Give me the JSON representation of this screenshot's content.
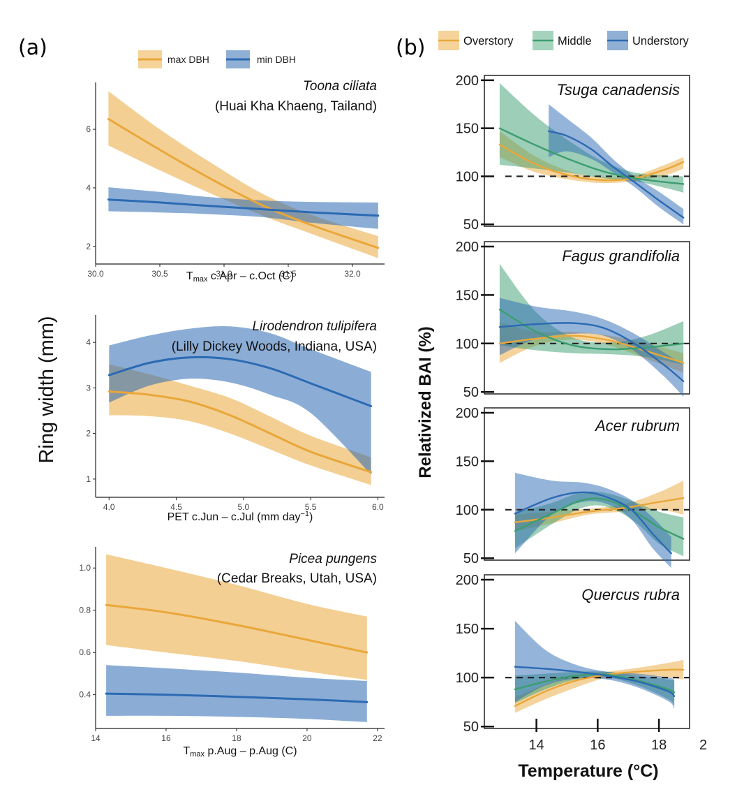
{
  "figure": {
    "panel_a_label": "(a)",
    "panel_b_label": "(b)"
  },
  "colors": {
    "max DBH": "#E9A73A",
    "min DBH": "#2C6AB3",
    "Overstory": "#E9A73A",
    "Middle": "#3C9E70",
    "Understory": "#2C6AB3",
    "reference_line": "#222222"
  },
  "chart_data": [
    {
      "type": "line",
      "panel": "(a)",
      "annotation_species": "Toona ciliata",
      "annotation_site": "(Huai Kha Khaeng, Tailand)",
      "xlabel_main": "T",
      "xlabel_sub": "max",
      "xlabel_rest": " c.Apr – c.Oct (C)",
      "ylabel": "Ring width (mm)",
      "legend": [
        "max DBH",
        "min DBH"
      ],
      "legend_position": "top-center",
      "grid": false,
      "xlim": [
        30.0,
        32.25
      ],
      "ylim": [
        1.4,
        7.6
      ],
      "xticks": [
        30.0,
        30.5,
        31.0,
        31.5,
        32.0
      ],
      "xticklabels": [
        "30.0",
        "30.5",
        "31.0",
        "31.5",
        "32.0"
      ],
      "yticks": [
        2,
        4,
        6
      ],
      "yticklabels": [
        "2",
        "4",
        "6"
      ],
      "series": [
        {
          "name": "max DBH",
          "x": [
            30.1,
            30.5,
            30.9,
            31.3,
            31.7,
            32.2
          ],
          "y": [
            6.35,
            5.3,
            4.3,
            3.4,
            2.7,
            1.95
          ],
          "lower": [
            5.45,
            4.6,
            3.8,
            3.05,
            2.4,
            1.6
          ],
          "upper": [
            7.3,
            6.0,
            4.85,
            3.8,
            3.05,
            2.35
          ]
        },
        {
          "name": "min DBH",
          "x": [
            30.1,
            30.5,
            30.9,
            31.3,
            31.7,
            32.2
          ],
          "y": [
            3.6,
            3.5,
            3.38,
            3.27,
            3.16,
            3.05
          ],
          "lower": [
            3.2,
            3.16,
            3.1,
            3.0,
            2.8,
            2.6
          ],
          "upper": [
            4.02,
            3.86,
            3.68,
            3.57,
            3.52,
            3.5
          ]
        }
      ]
    },
    {
      "type": "line",
      "panel": "(a)",
      "annotation_species": "Lirodendron tulipifera",
      "annotation_site": "(Lilly Dickey Woods, Indiana, USA)",
      "xlabel_main": "PET c.Jun – c.Jul (mm day",
      "xlabel_sup": "−1",
      "xlabel_rest": ")",
      "grid": false,
      "xlim": [
        3.9,
        6.05
      ],
      "ylim": [
        0.6,
        4.6
      ],
      "xticks": [
        4.0,
        4.5,
        5.0,
        5.5,
        6.0
      ],
      "xticklabels": [
        "4.0",
        "4.5",
        "5.0",
        "5.5",
        "6.0"
      ],
      "yticks": [
        1,
        2,
        3,
        4
      ],
      "yticklabels": [
        "1",
        "2",
        "3",
        "4"
      ],
      "series": [
        {
          "name": "max DBH",
          "x": [
            4.0,
            4.3,
            4.6,
            4.9,
            5.2,
            5.5,
            5.95
          ],
          "y": [
            2.92,
            2.85,
            2.7,
            2.4,
            2.0,
            1.6,
            1.15
          ],
          "lower": [
            2.4,
            2.38,
            2.27,
            2.0,
            1.65,
            1.3,
            0.87
          ],
          "upper": [
            3.52,
            3.3,
            3.05,
            2.78,
            2.37,
            1.95,
            1.48
          ]
        },
        {
          "name": "min DBH",
          "x": [
            4.0,
            4.3,
            4.6,
            4.9,
            5.2,
            5.5,
            5.95
          ],
          "y": [
            3.28,
            3.55,
            3.67,
            3.63,
            3.43,
            3.1,
            2.6
          ],
          "lower": [
            2.68,
            3.05,
            3.2,
            3.12,
            2.85,
            2.45,
            1.1
          ],
          "upper": [
            3.93,
            4.15,
            4.3,
            4.35,
            4.2,
            3.85,
            3.35
          ]
        }
      ]
    },
    {
      "type": "line",
      "panel": "(a)",
      "annotation_species": "Picea pungens",
      "annotation_site": "(Cedar Breaks, Utah, USA)",
      "xlabel_main": "T",
      "xlabel_sub": "max",
      "xlabel_rest": " p.Aug – p.Aug (C)",
      "grid": false,
      "xlim": [
        14.0,
        22.2
      ],
      "ylim": [
        0.24,
        1.1
      ],
      "xticks": [
        14,
        16,
        18,
        20,
        22
      ],
      "xticklabels": [
        "14",
        "16",
        "18",
        "20",
        "22"
      ],
      "yticks": [
        0.4,
        0.6,
        0.8,
        1.0
      ],
      "yticklabels": [
        "0.4",
        "0.6",
        "0.8",
        "1.0"
      ],
      "series": [
        {
          "name": "max DBH",
          "x": [
            14.3,
            16.0,
            18.0,
            20.0,
            21.7
          ],
          "y": [
            0.825,
            0.79,
            0.73,
            0.66,
            0.6
          ],
          "lower": [
            0.635,
            0.6,
            0.56,
            0.51,
            0.47
          ],
          "upper": [
            1.065,
            1.0,
            0.92,
            0.83,
            0.77
          ]
        },
        {
          "name": "min DBH",
          "x": [
            14.3,
            16.0,
            18.0,
            20.0,
            21.7
          ],
          "y": [
            0.405,
            0.4,
            0.39,
            0.378,
            0.365
          ],
          "lower": [
            0.3,
            0.3,
            0.295,
            0.285,
            0.27
          ],
          "upper": [
            0.54,
            0.525,
            0.505,
            0.48,
            0.465
          ]
        }
      ]
    },
    {
      "type": "line",
      "panel": "(b)",
      "annotation_species": "Tsuga canadensis",
      "ylabel": "Relativized BAI (%)",
      "xlabel": "Temperature (°C)",
      "legend": [
        "Overstory",
        "Middle",
        "Understory"
      ],
      "legend_position": "top",
      "reference_line_y": 100,
      "grid": false,
      "xlim": [
        12.3,
        19.0
      ],
      "ylim": [
        48,
        205
      ],
      "yticks": [
        50,
        100,
        150,
        200
      ],
      "yticklabels": [
        "50",
        "100",
        "150",
        "200"
      ],
      "series": [
        {
          "name": "Overstory",
          "x": [
            12.8,
            14.0,
            15.2,
            16.2,
            17.2,
            18.2,
            18.8
          ],
          "y": [
            133,
            112,
            100,
            96,
            98,
            107,
            115
          ],
          "lower": [
            120,
            104,
            96,
            93,
            95,
            101,
            108
          ],
          "upper": [
            147,
            120,
            104,
            99,
            101,
            112,
            120
          ]
        },
        {
          "name": "Middle",
          "x": [
            12.8,
            14.0,
            15.2,
            16.2,
            17.2,
            18.2,
            18.8
          ],
          "y": [
            150,
            132,
            116,
            105,
            98,
            94,
            92
          ],
          "lower": [
            112,
            108,
            103,
            98,
            95,
            88,
            83
          ],
          "upper": [
            197,
            162,
            134,
            115,
            104,
            101,
            100
          ]
        },
        {
          "name": "Understory",
          "x": [
            14.4,
            15.0,
            15.8,
            16.5,
            17.2,
            18.0,
            18.8
          ],
          "y": [
            147,
            142,
            128,
            110,
            94,
            75,
            57
          ],
          "lower": [
            120,
            126,
            118,
            104,
            89,
            68,
            50
          ],
          "upper": [
            175,
            160,
            140,
            118,
            100,
            84,
            66
          ]
        }
      ]
    },
    {
      "type": "line",
      "panel": "(b)",
      "annotation_species": "Fagus grandifolia",
      "reference_line_y": 100,
      "grid": false,
      "xlim": [
        12.3,
        19.0
      ],
      "ylim": [
        48,
        205
      ],
      "yticks": [
        50,
        100,
        150,
        200
      ],
      "yticklabels": [
        "50",
        "100",
        "150",
        "200"
      ],
      "series": [
        {
          "name": "Overstory",
          "x": [
            12.8,
            14.0,
            15.2,
            16.4,
            17.6,
            18.8
          ],
          "y": [
            100,
            105,
            108,
            103,
            92,
            80
          ],
          "lower": [
            80,
            98,
            104,
            98,
            84,
            70
          ],
          "upper": [
            122,
            112,
            112,
            108,
            100,
            90
          ]
        },
        {
          "name": "Middle",
          "x": [
            12.8,
            14.0,
            15.2,
            16.4,
            17.6,
            18.8
          ],
          "y": [
            135,
            112,
            98,
            94,
            96,
            100
          ],
          "lower": [
            98,
            93,
            90,
            89,
            86,
            78
          ],
          "upper": [
            182,
            132,
            106,
            101,
            108,
            123
          ]
        },
        {
          "name": "Understory",
          "x": [
            12.8,
            14.0,
            15.2,
            16.2,
            17.2,
            18.2,
            18.8
          ],
          "y": [
            117,
            120,
            121,
            116,
            100,
            77,
            61
          ],
          "lower": [
            88,
            105,
            110,
            108,
            92,
            65,
            45
          ],
          "upper": [
            147,
            138,
            133,
            125,
            110,
            90,
            78
          ]
        }
      ]
    },
    {
      "type": "line",
      "panel": "(b)",
      "annotation_species": "Acer rubrum",
      "reference_line_y": 100,
      "grid": false,
      "xlim": [
        12.3,
        19.0
      ],
      "ylim": [
        48,
        205
      ],
      "yticks": [
        50,
        100,
        150,
        200
      ],
      "yticklabels": [
        "50",
        "100",
        "150",
        "200"
      ],
      "series": [
        {
          "name": "Overstory",
          "x": [
            13.3,
            14.5,
            15.7,
            16.9,
            18.0,
            18.8
          ],
          "y": [
            87,
            92,
            98,
            102,
            108,
            112
          ],
          "lower": [
            78,
            86,
            95,
            98,
            100,
            95
          ],
          "upper": [
            95,
            98,
            101,
            106,
            118,
            130
          ]
        },
        {
          "name": "Middle",
          "x": [
            13.3,
            14.5,
            15.5,
            16.3,
            17.2,
            18.0,
            18.8
          ],
          "y": [
            78,
            96,
            110,
            110,
            98,
            82,
            70
          ],
          "lower": [
            60,
            85,
            102,
            103,
            88,
            65,
            52
          ],
          "upper": [
            97,
            107,
            118,
            117,
            108,
            98,
            92
          ]
        },
        {
          "name": "Understory",
          "x": [
            13.3,
            14.5,
            15.5,
            16.3,
            17.1,
            17.8,
            18.4
          ],
          "y": [
            96,
            112,
            118,
            113,
            100,
            75,
            55
          ],
          "lower": [
            55,
            95,
            108,
            106,
            90,
            60,
            40
          ],
          "upper": [
            138,
            130,
            128,
            122,
            110,
            92,
            72
          ]
        }
      ]
    },
    {
      "type": "line",
      "panel": "(b)",
      "annotation_species": "Quercus rubra",
      "reference_line_y": 100,
      "xlabel": "Temperature (°C)",
      "grid": false,
      "xlim": [
        12.3,
        19.0
      ],
      "ylim": [
        48,
        205
      ],
      "xticks": [
        14,
        16,
        18
      ],
      "xticklabels": [
        "14",
        "16",
        "18"
      ],
      "yticks": [
        50,
        100,
        150,
        200
      ],
      "yticklabels": [
        "50",
        "100",
        "150",
        "200"
      ],
      "series": [
        {
          "name": "Overstory",
          "x": [
            13.3,
            14.3,
            15.3,
            16.3,
            17.3,
            18.3,
            18.8
          ],
          "y": [
            71,
            86,
            97,
            103,
            106,
            108,
            108
          ],
          "lower": [
            64,
            78,
            90,
            100,
            102,
            100,
            98
          ],
          "upper": [
            80,
            93,
            103,
            106,
            110,
            115,
            118
          ]
        },
        {
          "name": "Middle",
          "x": [
            13.3,
            14.3,
            15.3,
            16.3,
            17.3,
            18.3,
            18.5
          ],
          "y": [
            88,
            96,
            102,
            103,
            97,
            88,
            85
          ],
          "lower": [
            74,
            88,
            98,
            100,
            92,
            78,
            72
          ],
          "upper": [
            102,
            104,
            106,
            106,
            102,
            98,
            97
          ]
        },
        {
          "name": "Understory",
          "x": [
            13.3,
            14.3,
            15.3,
            16.3,
            17.3,
            18.3,
            18.5
          ],
          "y": [
            111,
            109,
            106,
            102,
            96,
            86,
            81
          ],
          "lower": [
            75,
            92,
            99,
            98,
            90,
            76,
            68
          ],
          "upper": [
            158,
            128,
            113,
            106,
            104,
            100,
            98
          ]
        }
      ]
    }
  ]
}
